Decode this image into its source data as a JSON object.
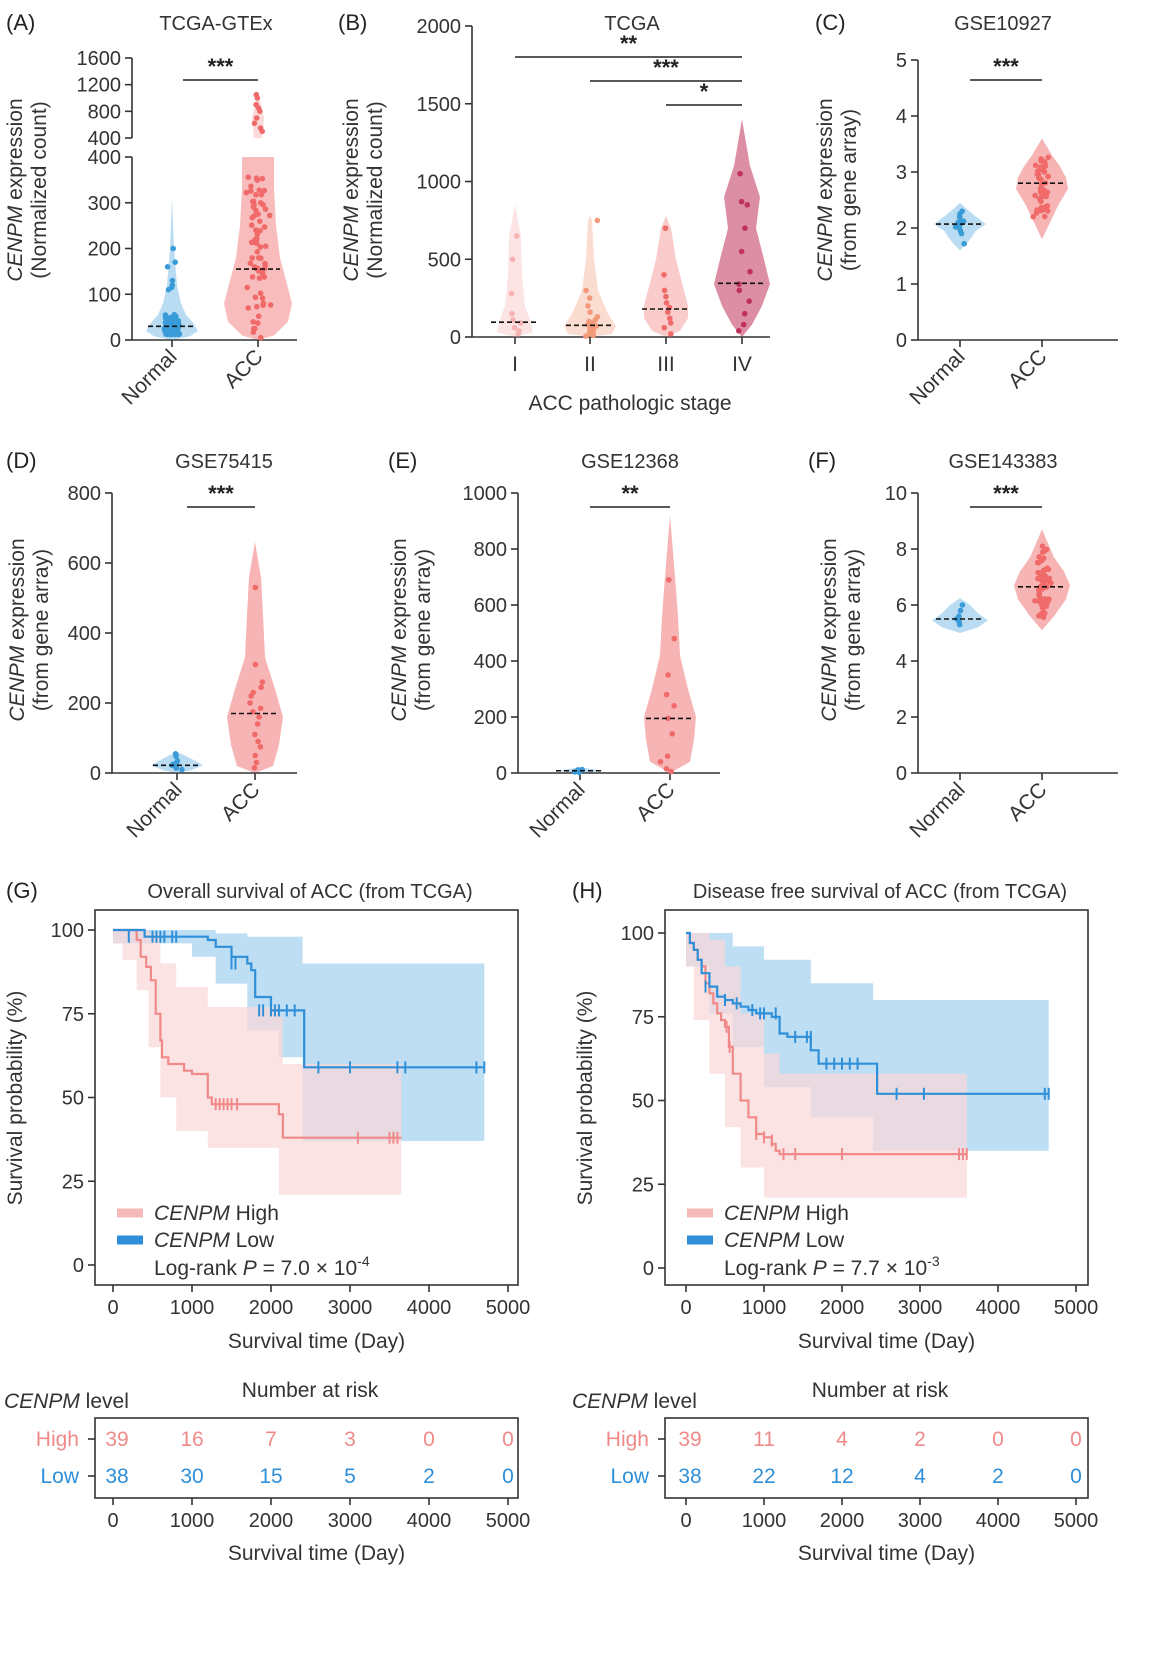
{
  "colors": {
    "normal": "#3a9bd9",
    "acc": "#f06a6a",
    "high": "#f08a8a",
    "low": "#2f8fd8",
    "high_band": "#fbd7d7",
    "low_band": "#b3d8f2",
    "stage1": "#f6b1b1",
    "stage2": "#f39a7b",
    "stage3": "#f06a6a",
    "stage4": "#c0325a"
  },
  "chart_data": [
    {
      "type": "violin",
      "panel": "(A)",
      "title": "TCGA-GTEx",
      "ylabel_italic": "CENPM",
      "ylabel": " expression",
      "ylabel2": "(Normalized count)",
      "categories": [
        "Normal",
        "ACC"
      ],
      "medians": [
        30,
        155
      ],
      "significance": "***",
      "y_ticks_upper": [
        "1600",
        "1200",
        "800",
        "400"
      ],
      "y_ticks_lower": [
        "400",
        "300",
        "200",
        "100",
        "0"
      ]
    },
    {
      "type": "violin",
      "panel": "(B)",
      "title": "TCGA",
      "ylabel_italic": "CENPM",
      "ylabel": " expression",
      "ylabel2": "(Normalized count)",
      "categories": [
        "I",
        "II",
        "III",
        "IV"
      ],
      "xlabel": "ACC pathologic stage",
      "medians": [
        95,
        75,
        180,
        345
      ],
      "ylim": [
        0,
        2000
      ],
      "y_ticks": [
        "0",
        "500",
        "1000",
        "1500",
        "2000"
      ],
      "comparisons": [
        {
          "from": "I",
          "to": "IV",
          "sig": "**"
        },
        {
          "from": "II",
          "to": "IV",
          "sig": "***"
        },
        {
          "from": "III",
          "to": "IV",
          "sig": "*"
        }
      ]
    },
    {
      "type": "violin",
      "panel": "(C)",
      "title": "GSE10927",
      "ylabel_italic": "CENPM",
      "ylabel": " expression",
      "ylabel2": "(from gene array)",
      "categories": [
        "Normal",
        "ACC"
      ],
      "medians": [
        2.07,
        2.8
      ],
      "ylim": [
        0,
        5
      ],
      "y_ticks": [
        "0",
        "1",
        "2",
        "3",
        "4",
        "5"
      ],
      "significance": "***"
    },
    {
      "type": "violin",
      "panel": "(D)",
      "title": "GSE75415",
      "ylabel_italic": "CENPM",
      "ylabel": " expression",
      "ylabel2": "(from gene array)",
      "categories": [
        "Normal",
        "ACC"
      ],
      "medians": [
        22,
        170
      ],
      "ylim": [
        0,
        800
      ],
      "y_ticks": [
        "0",
        "200",
        "400",
        "600",
        "800"
      ],
      "significance": "***"
    },
    {
      "type": "violin",
      "panel": "(E)",
      "title": "GSE12368",
      "ylabel_italic": "CENPM",
      "ylabel": " expression",
      "ylabel2": "(from gene array)",
      "categories": [
        "Normal",
        "ACC"
      ],
      "medians": [
        8,
        195
      ],
      "ylim": [
        0,
        1000
      ],
      "y_ticks": [
        "0",
        "200",
        "400",
        "600",
        "800",
        "1000"
      ],
      "significance": "**"
    },
    {
      "type": "violin",
      "panel": "(F)",
      "title": "GSE143383",
      "ylabel_italic": "CENPM",
      "ylabel": " expression",
      "ylabel2": "(from gene array)",
      "categories": [
        "Normal",
        "ACC"
      ],
      "medians": [
        5.5,
        6.65
      ],
      "ylim": [
        0,
        10
      ],
      "y_ticks": [
        "0",
        "2",
        "4",
        "6",
        "8",
        "10"
      ],
      "significance": "***"
    },
    {
      "type": "line",
      "panel": "(G)",
      "title": "Overall survival of ACC (from TCGA)",
      "xlabel": "Survival time (Day)",
      "ylabel": "Survival probability (%)",
      "xlim": [
        0,
        5000
      ],
      "ylim": [
        0,
        100
      ],
      "x_ticks": [
        "0",
        "1000",
        "2000",
        "3000",
        "4000",
        "5000"
      ],
      "y_ticks": [
        "0",
        "25",
        "50",
        "75",
        "100"
      ],
      "legend": {
        "italic": "CENPM",
        "high": " High",
        "low": " Low",
        "logrank": "Log-rank ",
        "p": "P",
        "pval": " = 7.0 × 10",
        "exp": "-4"
      },
      "series": [
        {
          "name": "CENPM High",
          "x": [
            0,
            120,
            300,
            350,
            420,
            480,
            540,
            600,
            620,
            700,
            800,
            900,
            1000,
            1200,
            1250,
            2080,
            2100,
            2150,
            3600,
            3650
          ],
          "y": [
            100,
            100,
            97,
            92,
            89,
            85,
            75,
            67,
            62,
            60,
            60,
            58,
            57,
            50,
            48,
            48,
            45,
            38,
            38,
            38
          ]
        },
        {
          "name": "CENPM Low",
          "x": [
            0,
            200,
            400,
            800,
            1100,
            1200,
            1300,
            1500,
            1700,
            1750,
            1800,
            2000,
            2100,
            2380,
            2420,
            2500,
            3500,
            4700
          ],
          "y": [
            100,
            100,
            98,
            98,
            98,
            97,
            95,
            92,
            90,
            88,
            80,
            76,
            76,
            76,
            59,
            59,
            59,
            59
          ]
        }
      ],
      "risk": {
        "header": "Number at risk",
        "level_italic": "CENPM",
        "level": " level",
        "rows": [
          {
            "label": "High",
            "values": [
              "39",
              "16",
              "7",
              "3",
              "0",
              "0"
            ]
          },
          {
            "label": "Low",
            "values": [
              "38",
              "30",
              "15",
              "5",
              "2",
              "0"
            ]
          }
        ]
      }
    },
    {
      "type": "line",
      "panel": "(H)",
      "title": "Disease free survival of ACC (from TCGA)",
      "xlabel": "Survival time (Day)",
      "ylabel": "Survival probability (%)",
      "xlim": [
        0,
        5000
      ],
      "ylim": [
        0,
        100
      ],
      "x_ticks": [
        "0",
        "1000",
        "2000",
        "3000",
        "4000",
        "5000"
      ],
      "y_ticks": [
        "0",
        "25",
        "50",
        "75",
        "100"
      ],
      "legend": {
        "italic": "CENPM",
        "high": " High",
        "low": " Low",
        "logrank": "Log-rank ",
        "p": "P",
        "pval": " = 7.7 × 10",
        "exp": "-3"
      },
      "series": [
        {
          "name": "CENPM High",
          "x": [
            0,
            50,
            100,
            150,
            200,
            250,
            300,
            350,
            400,
            450,
            500,
            550,
            600,
            700,
            800,
            900,
            1000,
            1100,
            1150,
            1200,
            1600,
            3600
          ],
          "y": [
            100,
            97,
            95,
            92,
            90,
            85,
            82,
            79,
            76,
            74,
            72,
            66,
            58,
            50,
            45,
            40,
            39,
            37,
            35,
            34,
            34,
            34
          ]
        },
        {
          "name": "CENPM Low",
          "x": [
            0,
            50,
            100,
            150,
            200,
            300,
            400,
            500,
            600,
            700,
            800,
            900,
            1000,
            1100,
            1200,
            1300,
            1400,
            1600,
            1700,
            2400,
            2450,
            4650
          ],
          "y": [
            100,
            97,
            95,
            92,
            88,
            84,
            81,
            80,
            79,
            78,
            77,
            76,
            76,
            75,
            70,
            69,
            69,
            65,
            61,
            61,
            52,
            52
          ]
        }
      ],
      "risk": {
        "header": "Number at risk",
        "level_italic": "CENPM",
        "level": " level",
        "rows": [
          {
            "label": "High",
            "values": [
              "39",
              "11",
              "4",
              "2",
              "0",
              "0"
            ]
          },
          {
            "label": "Low",
            "values": [
              "38",
              "22",
              "12",
              "4",
              "2",
              "0"
            ]
          }
        ]
      }
    }
  ]
}
